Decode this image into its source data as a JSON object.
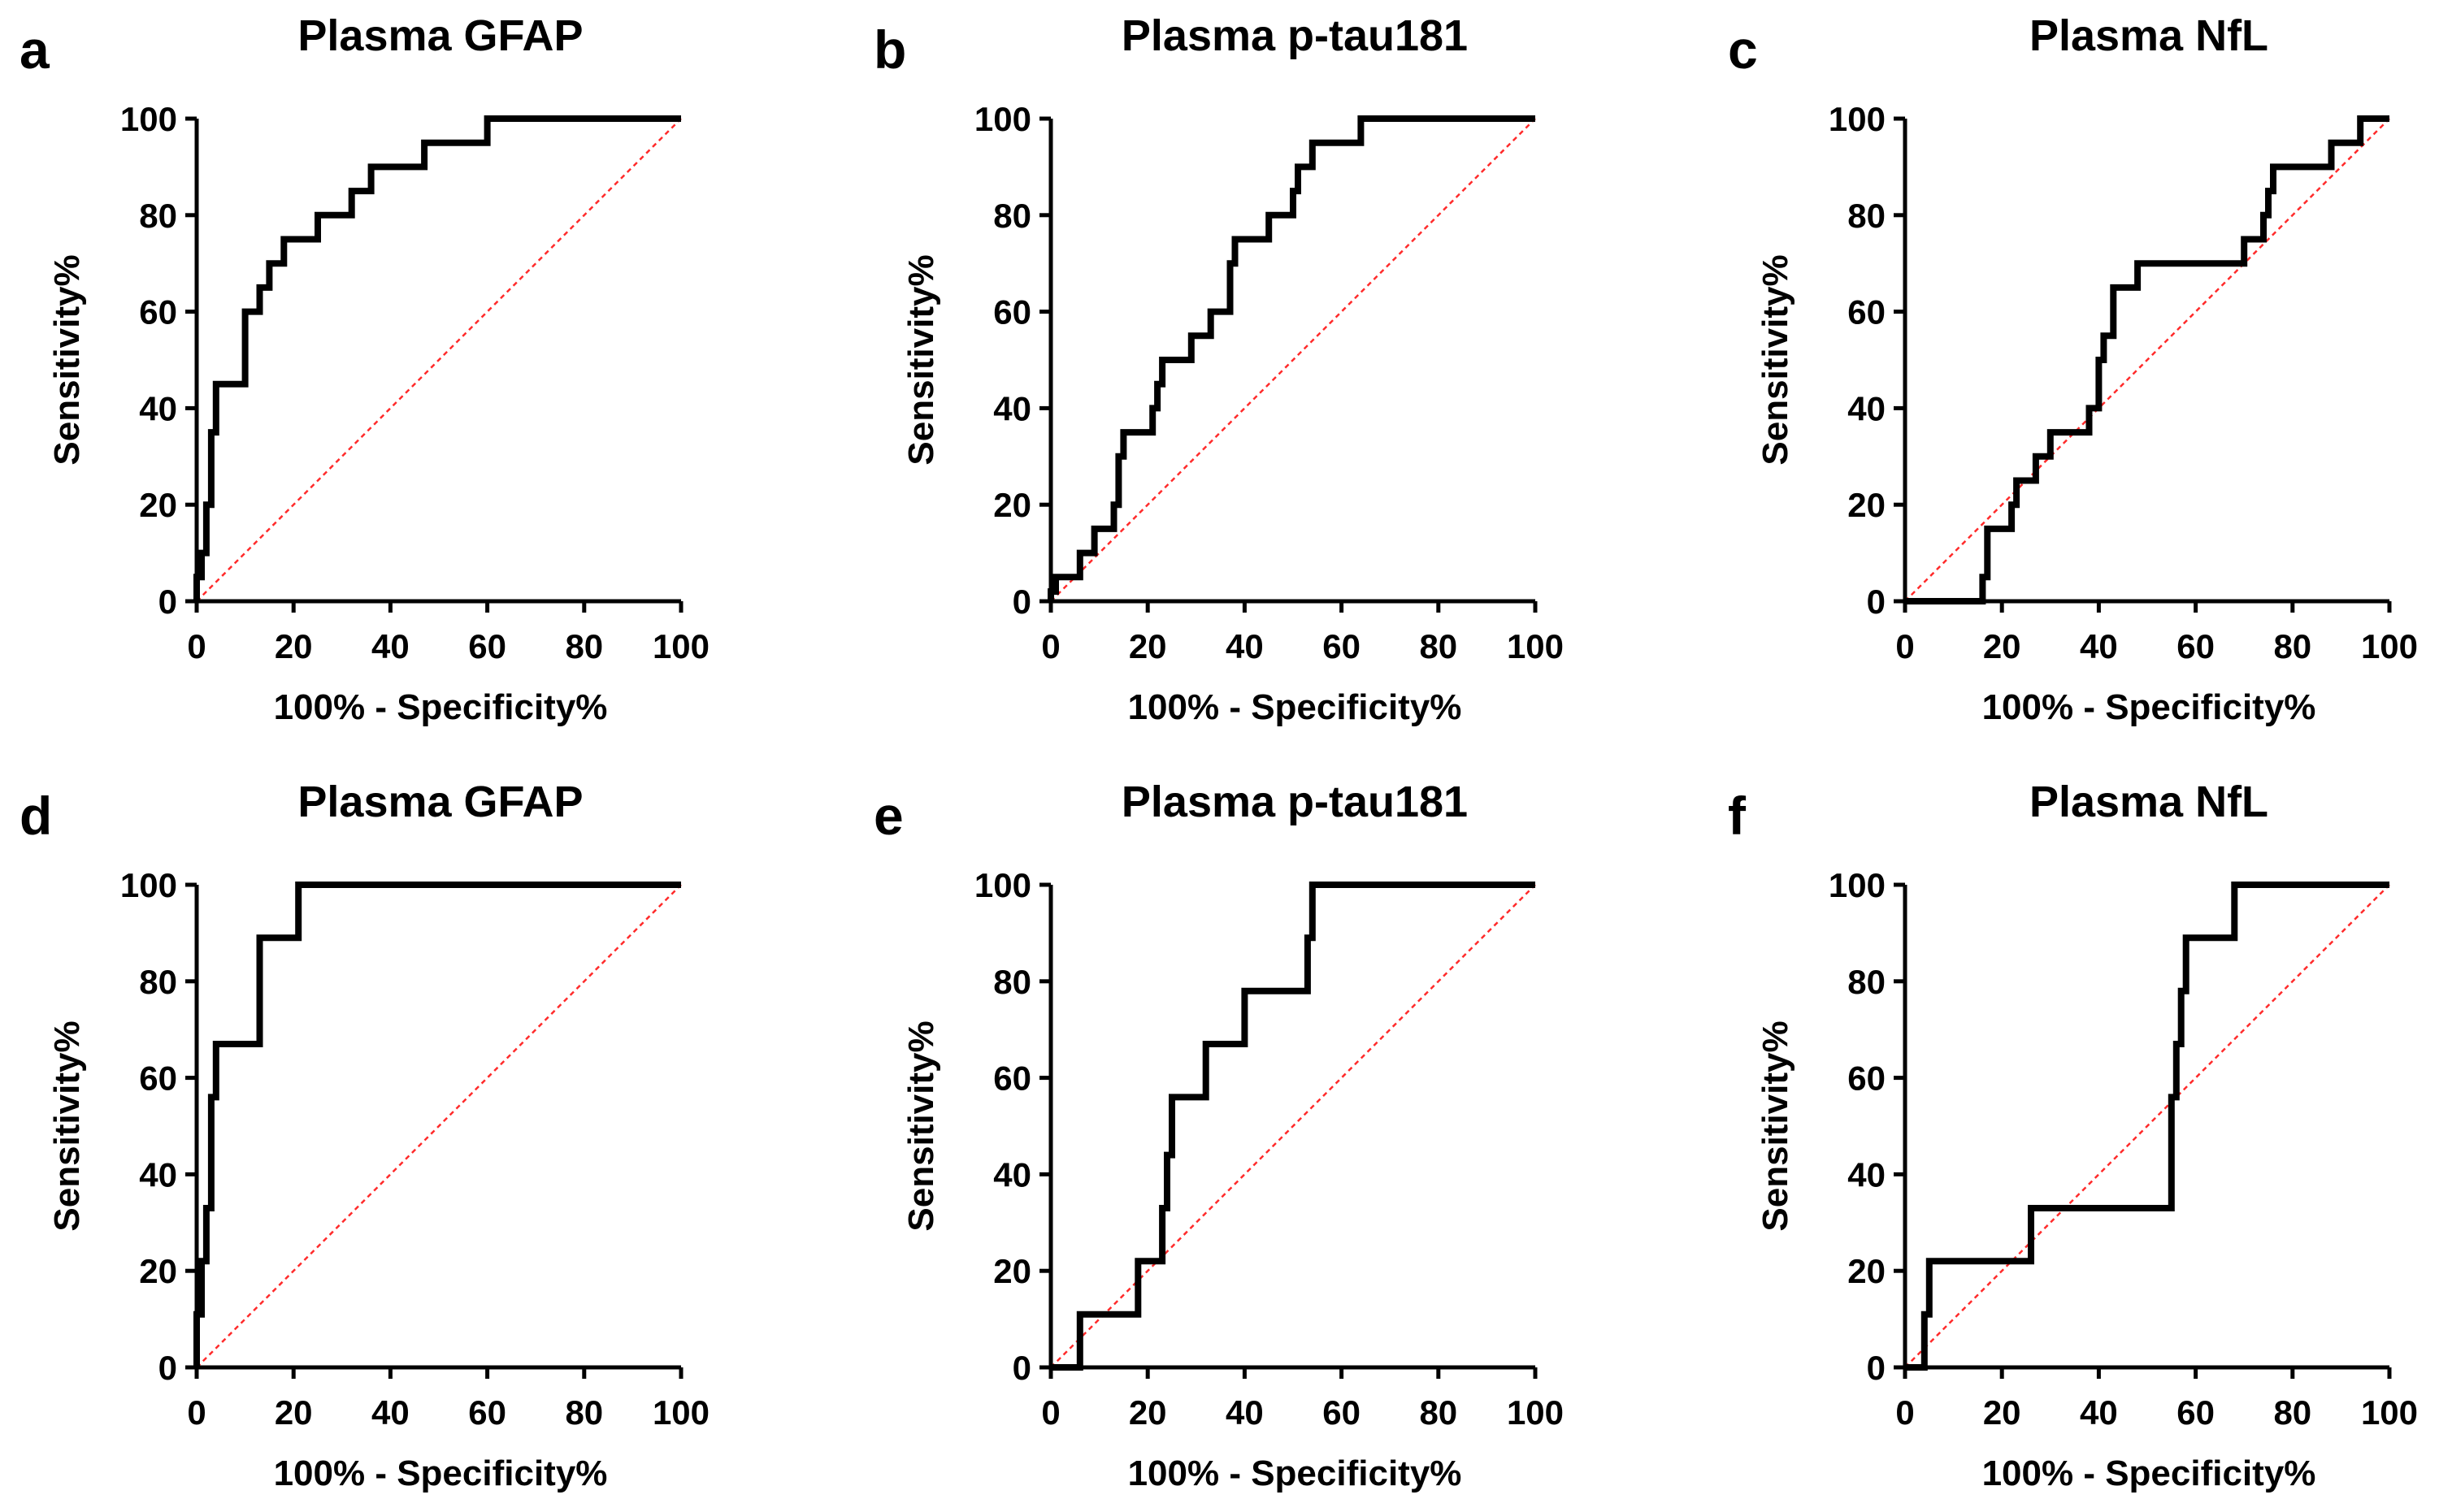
{
  "chart_data": [
    {
      "type": "line",
      "panel": "a",
      "title": "Plasma GFAP",
      "xlabel": "100% - Specificity%",
      "ylabel": "Sensitivity%",
      "xlim": [
        0,
        100
      ],
      "ylim": [
        0,
        100
      ],
      "xticks": [
        0,
        20,
        40,
        60,
        80,
        100
      ],
      "yticks": [
        0,
        20,
        40,
        60,
        80,
        100
      ],
      "reference_color": "#ff2b2b",
      "x": [
        0,
        0,
        1,
        1,
        2,
        2,
        3,
        3,
        4,
        4,
        10,
        10,
        13,
        13,
        15,
        15,
        18,
        18,
        25,
        25,
        32,
        32,
        36,
        36,
        47,
        47,
        60,
        60,
        100
      ],
      "y": [
        0,
        5,
        5,
        10,
        10,
        20,
        20,
        35,
        35,
        45,
        45,
        60,
        60,
        65,
        65,
        70,
        70,
        75,
        75,
        80,
        80,
        85,
        85,
        90,
        90,
        95,
        95,
        100,
        100
      ]
    },
    {
      "type": "line",
      "panel": "b",
      "title": "Plasma p-tau181",
      "xlabel": "100% - Specificity%",
      "ylabel": "Sensitivity%",
      "xlim": [
        0,
        100
      ],
      "ylim": [
        0,
        100
      ],
      "xticks": [
        0,
        20,
        40,
        60,
        80,
        100
      ],
      "yticks": [
        0,
        20,
        40,
        60,
        80,
        100
      ],
      "reference_color": "#ff2b2b",
      "x": [
        0,
        0,
        1,
        1,
        6,
        6,
        9,
        9,
        13,
        13,
        14,
        14,
        15,
        15,
        21,
        21,
        22,
        22,
        23,
        23,
        29,
        29,
        33,
        33,
        37,
        37,
        38,
        38,
        45,
        45,
        50,
        50,
        51,
        51,
        54,
        54,
        64,
        64,
        100
      ],
      "y": [
        0,
        2,
        2,
        5,
        5,
        10,
        10,
        15,
        15,
        20,
        20,
        30,
        30,
        35,
        35,
        40,
        40,
        45,
        45,
        50,
        50,
        55,
        55,
        60,
        60,
        70,
        70,
        75,
        75,
        80,
        80,
        85,
        85,
        90,
        90,
        95,
        95,
        100,
        100
      ]
    },
    {
      "type": "line",
      "panel": "c",
      "title": "Plasma NfL",
      "xlabel": "100% - Specificity%",
      "ylabel": "Sensitivity%",
      "xlim": [
        0,
        100
      ],
      "ylim": [
        0,
        100
      ],
      "xticks": [
        0,
        20,
        40,
        60,
        80,
        100
      ],
      "yticks": [
        0,
        20,
        40,
        60,
        80,
        100
      ],
      "reference_color": "#ff2b2b",
      "x": [
        0,
        16,
        16,
        17,
        17,
        22,
        22,
        23,
        23,
        27,
        27,
        30,
        30,
        38,
        38,
        40,
        40,
        41,
        41,
        43,
        43,
        48,
        48,
        70,
        70,
        74,
        74,
        75,
        75,
        76,
        76,
        88,
        88,
        94,
        94,
        95,
        95,
        100
      ],
      "y": [
        0,
        0,
        5,
        5,
        15,
        15,
        20,
        20,
        25,
        25,
        30,
        30,
        35,
        35,
        40,
        40,
        50,
        50,
        55,
        55,
        65,
        65,
        70,
        70,
        75,
        75,
        80,
        80,
        85,
        85,
        90,
        90,
        95,
        95,
        100,
        100,
        100,
        100
      ]
    },
    {
      "type": "line",
      "panel": "d",
      "title": "Plasma GFAP",
      "xlabel": "100% - Specificity%",
      "ylabel": "Sensitivity%",
      "xlim": [
        0,
        100
      ],
      "ylim": [
        0,
        100
      ],
      "xticks": [
        0,
        20,
        40,
        60,
        80,
        100
      ],
      "yticks": [
        0,
        20,
        40,
        60,
        80,
        100
      ],
      "reference_color": "#ff2b2b",
      "x": [
        0,
        0,
        1,
        1,
        2,
        2,
        3,
        3,
        4,
        4,
        13,
        13,
        21,
        21,
        100
      ],
      "y": [
        0,
        11,
        11,
        22,
        22,
        33,
        33,
        56,
        56,
        67,
        67,
        89,
        89,
        100,
        100
      ]
    },
    {
      "type": "line",
      "panel": "e",
      "title": "Plasma p-tau181",
      "xlabel": "100% - Specificity%",
      "ylabel": "Sensitivity%",
      "xlim": [
        0,
        100
      ],
      "ylim": [
        0,
        100
      ],
      "xticks": [
        0,
        20,
        40,
        60,
        80,
        100
      ],
      "yticks": [
        0,
        20,
        40,
        60,
        80,
        100
      ],
      "reference_color": "#ff2b2b",
      "x": [
        0,
        6,
        6,
        18,
        18,
        23,
        23,
        24,
        24,
        25,
        25,
        32,
        32,
        40,
        40,
        53,
        53,
        54,
        54,
        100
      ],
      "y": [
        0,
        0,
        11,
        11,
        22,
        22,
        33,
        33,
        44,
        44,
        56,
        56,
        67,
        67,
        78,
        78,
        89,
        89,
        100,
        100
      ]
    },
    {
      "type": "line",
      "panel": "f",
      "title": "Plasma NfL",
      "xlabel": "100% - Specificity%",
      "ylabel": "Sensitivity%",
      "xlim": [
        0,
        100
      ],
      "ylim": [
        0,
        100
      ],
      "xticks": [
        0,
        20,
        40,
        60,
        80,
        100
      ],
      "yticks": [
        0,
        20,
        40,
        60,
        80,
        100
      ],
      "reference_color": "#ff2b2b",
      "x": [
        0,
        4,
        4,
        5,
        5,
        26,
        26,
        55,
        55,
        56,
        56,
        57,
        57,
        58,
        58,
        68,
        68,
        76,
        76,
        100
      ],
      "y": [
        0,
        0,
        11,
        11,
        22,
        22,
        33,
        33,
        56,
        56,
        67,
        67,
        78,
        78,
        89,
        89,
        100,
        100,
        100,
        100
      ]
    }
  ]
}
